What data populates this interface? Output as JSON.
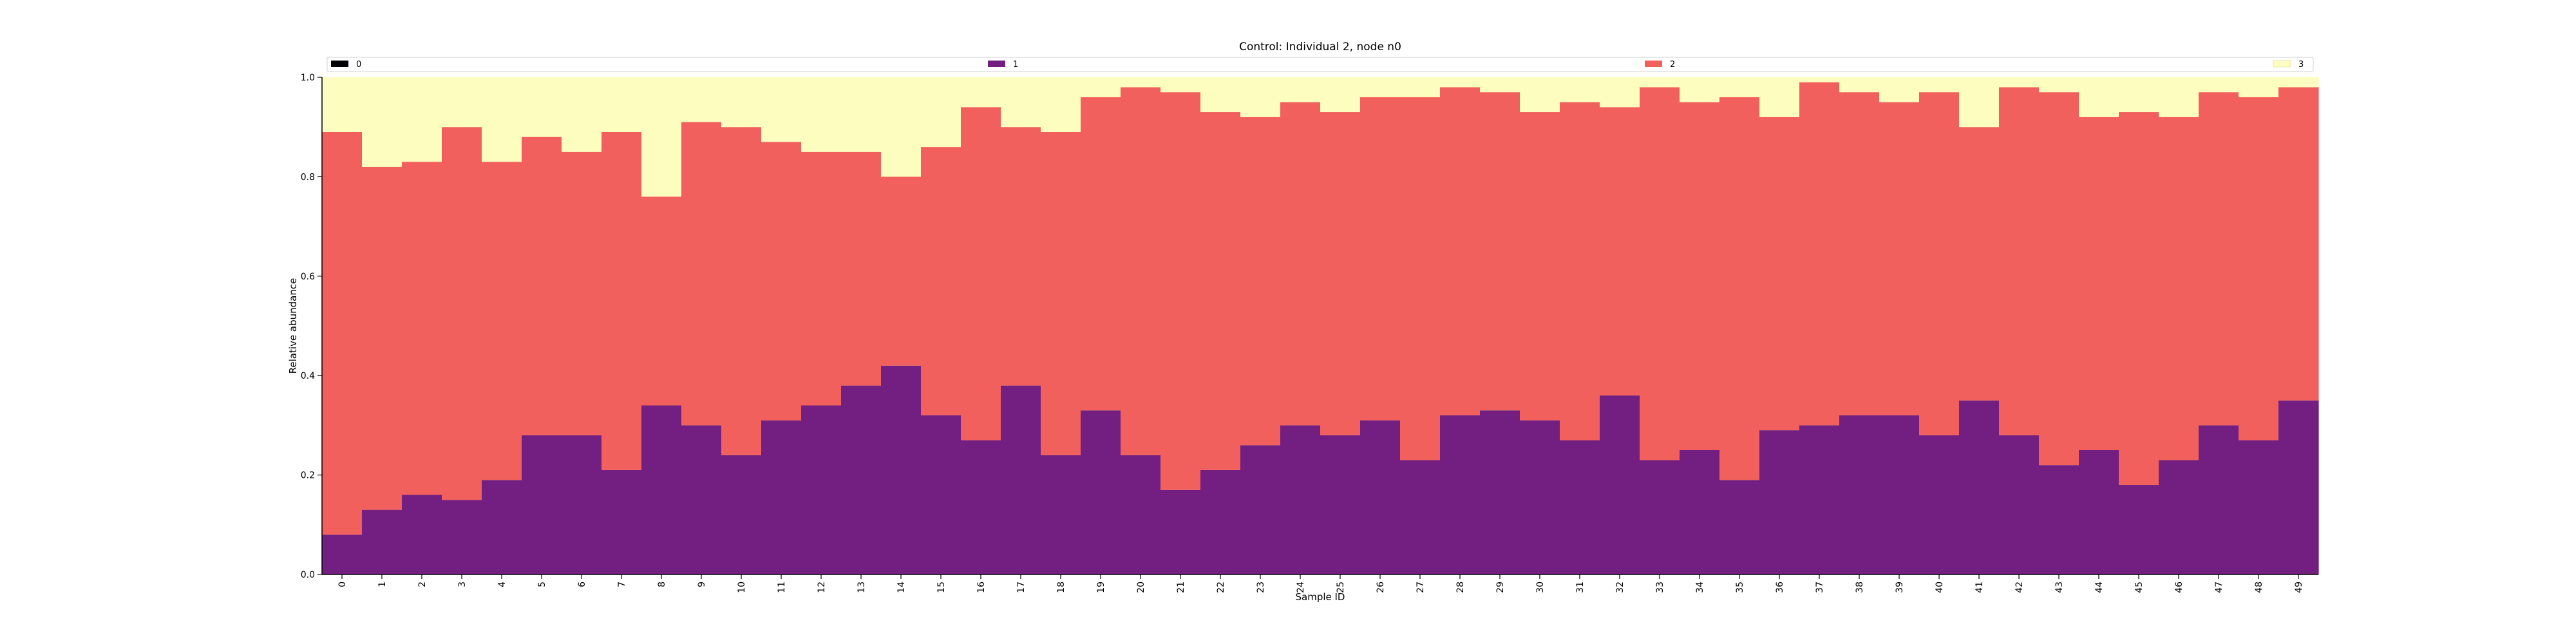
{
  "chart_data": {
    "type": "bar",
    "title": "Control: Individual 2, node n0",
    "xlabel": "Sample ID",
    "ylabel": "Relative abundance",
    "ylim": [
      0,
      1.0
    ],
    "yticks": [
      "0.0",
      "0.2",
      "0.4",
      "0.6",
      "0.8",
      "1.0"
    ],
    "stacked": true,
    "legend_position": "top",
    "categories": [
      "0",
      "1",
      "2",
      "3",
      "4",
      "5",
      "6",
      "7",
      "8",
      "9",
      "10",
      "11",
      "12",
      "13",
      "14",
      "15",
      "16",
      "17",
      "18",
      "19",
      "20",
      "21",
      "22",
      "23",
      "24",
      "25",
      "26",
      "27",
      "28",
      "29",
      "30",
      "31",
      "32",
      "33",
      "34",
      "35",
      "36",
      "37",
      "38",
      "39",
      "40",
      "41",
      "42",
      "43",
      "44",
      "45",
      "46",
      "47",
      "48",
      "49"
    ],
    "series": [
      {
        "name": "0",
        "color": "#000004",
        "values": [
          0,
          0,
          0,
          0,
          0,
          0,
          0,
          0,
          0,
          0,
          0,
          0,
          0,
          0,
          0,
          0,
          0,
          0,
          0,
          0,
          0,
          0,
          0,
          0,
          0,
          0,
          0,
          0,
          0,
          0,
          0,
          0,
          0,
          0,
          0,
          0,
          0,
          0,
          0,
          0,
          0,
          0,
          0,
          0,
          0,
          0,
          0,
          0,
          0,
          0
        ]
      },
      {
        "name": "1",
        "color": "#721f81",
        "values": [
          0.08,
          0.13,
          0.16,
          0.15,
          0.19,
          0.28,
          0.28,
          0.21,
          0.34,
          0.3,
          0.24,
          0.31,
          0.34,
          0.38,
          0.42,
          0.32,
          0.27,
          0.38,
          0.24,
          0.33,
          0.24,
          0.17,
          0.21,
          0.26,
          0.3,
          0.28,
          0.31,
          0.23,
          0.32,
          0.33,
          0.31,
          0.27,
          0.36,
          0.23,
          0.25,
          0.19,
          0.29,
          0.3,
          0.32,
          0.32,
          0.28,
          0.35,
          0.28,
          0.22,
          0.25,
          0.18,
          0.23,
          0.3,
          0.27,
          0.35
        ]
      },
      {
        "name": "2",
        "color": "#f1605d",
        "values": [
          0.81,
          0.69,
          0.67,
          0.75,
          0.64,
          0.6,
          0.57,
          0.68,
          0.42,
          0.61,
          0.66,
          0.56,
          0.51,
          0.47,
          0.38,
          0.54,
          0.67,
          0.52,
          0.65,
          0.63,
          0.74,
          0.8,
          0.72,
          0.66,
          0.65,
          0.65,
          0.65,
          0.73,
          0.66,
          0.64,
          0.62,
          0.68,
          0.58,
          0.75,
          0.7,
          0.77,
          0.63,
          0.69,
          0.65,
          0.63,
          0.69,
          0.55,
          0.7,
          0.75,
          0.67,
          0.75,
          0.69,
          0.67,
          0.69,
          0.63
        ]
      },
      {
        "name": "3",
        "color": "#fcfdbf",
        "values": [
          0.11,
          0.18,
          0.17,
          0.1,
          0.17,
          0.12,
          0.15,
          0.11,
          0.24,
          0.09,
          0.1,
          0.13,
          0.15,
          0.15,
          0.2,
          0.14,
          0.06,
          0.1,
          0.11,
          0.04,
          0.02,
          0.03,
          0.07,
          0.08,
          0.05,
          0.07,
          0.04,
          0.04,
          0.02,
          0.03,
          0.07,
          0.05,
          0.06,
          0.02,
          0.05,
          0.04,
          0.08,
          0.01,
          0.03,
          0.05,
          0.03,
          0.1,
          0.02,
          0.03,
          0.08,
          0.07,
          0.08,
          0.03,
          0.04,
          0.02
        ]
      }
    ]
  }
}
